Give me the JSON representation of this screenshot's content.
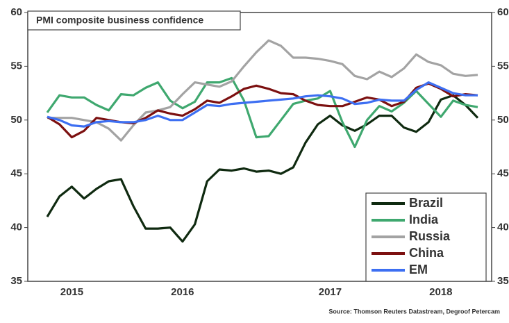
{
  "chart_data": {
    "type": "line",
    "title": "PMI composite business confidence",
    "source": "Source: Thomson Reuters Datastream, Degroof Petercam",
    "categories": [
      null,
      null,
      "2015",
      null,
      null,
      null,
      null,
      null,
      null,
      null,
      null,
      "2016",
      null,
      null,
      null,
      null,
      null,
      null,
      null,
      null,
      null,
      null,
      null,
      "2017",
      null,
      null,
      null,
      null,
      null,
      null,
      null,
      null,
      "2018",
      null,
      null,
      null
    ],
    "series": [
      {
        "name": "Brazil",
        "color": "#0f2a10",
        "values": [
          41.0,
          42.9,
          43.8,
          42.7,
          43.6,
          44.3,
          44.5,
          42.0,
          39.9,
          39.9,
          40.0,
          38.7,
          40.3,
          44.3,
          45.4,
          45.3,
          45.5,
          45.2,
          45.3,
          45.0,
          45.6,
          47.9,
          49.6,
          50.4,
          49.5,
          49.0,
          49.6,
          50.4,
          50.4,
          49.3,
          48.9,
          49.8,
          51.9,
          52.3,
          51.4,
          50.2
        ]
      },
      {
        "name": "India",
        "color": "#3fa86f",
        "values": [
          50.7,
          52.3,
          52.1,
          52.1,
          51.4,
          50.9,
          52.4,
          52.3,
          53.0,
          53.5,
          51.8,
          51.1,
          51.7,
          53.5,
          53.5,
          53.9,
          51.8,
          48.4,
          48.5,
          50.0,
          51.5,
          51.8,
          52.0,
          52.7,
          49.8,
          47.5,
          50.0,
          51.3,
          50.8,
          51.6,
          52.7,
          51.5,
          50.3,
          51.8,
          51.4,
          51.2
        ]
      },
      {
        "name": "Russia",
        "color": "#a3a3a3",
        "values": [
          50.2,
          50.2,
          50.2,
          50.0,
          49.8,
          49.2,
          48.1,
          49.5,
          50.7,
          50.9,
          51.2,
          52.4,
          53.5,
          53.3,
          53.1,
          53.6,
          55.0,
          56.3,
          57.4,
          56.9,
          55.8,
          55.8,
          55.7,
          55.5,
          55.2,
          54.1,
          53.8,
          54.5,
          54.0,
          54.8,
          56.1,
          55.4,
          55.1,
          54.3,
          54.1,
          54.2
        ]
      },
      {
        "name": "China",
        "color": "#7c1010",
        "values": [
          50.3,
          49.6,
          48.4,
          49.0,
          50.2,
          50.0,
          49.8,
          49.7,
          50.2,
          50.9,
          50.6,
          50.4,
          51.0,
          51.8,
          51.6,
          52.2,
          52.9,
          53.2,
          52.9,
          52.5,
          52.4,
          51.8,
          51.4,
          51.3,
          51.3,
          51.7,
          52.1,
          51.9,
          51.3,
          51.7,
          53.0,
          53.4,
          52.9,
          52.2,
          52.4,
          52.3
        ]
      },
      {
        "name": "EM",
        "color": "#3d6ff2",
        "values": [
          50.3,
          50.0,
          49.5,
          49.4,
          49.8,
          49.9,
          49.8,
          49.8,
          50.0,
          50.4,
          50.0,
          50.0,
          50.7,
          51.4,
          51.3,
          51.5,
          51.6,
          51.7,
          51.8,
          51.9,
          52.0,
          52.2,
          52.3,
          52.2,
          52.0,
          51.5,
          51.6,
          51.9,
          51.8,
          51.8,
          52.8,
          53.5,
          53.0,
          52.5,
          52.3,
          52.3
        ]
      }
    ],
    "ylim": [
      35,
      60
    ],
    "yticks": [
      35,
      40,
      45,
      50,
      55,
      60
    ],
    "y2lim": [
      35,
      60
    ],
    "y2ticks": [
      35,
      40,
      45,
      50,
      55,
      60
    ],
    "legend": "lower right"
  }
}
